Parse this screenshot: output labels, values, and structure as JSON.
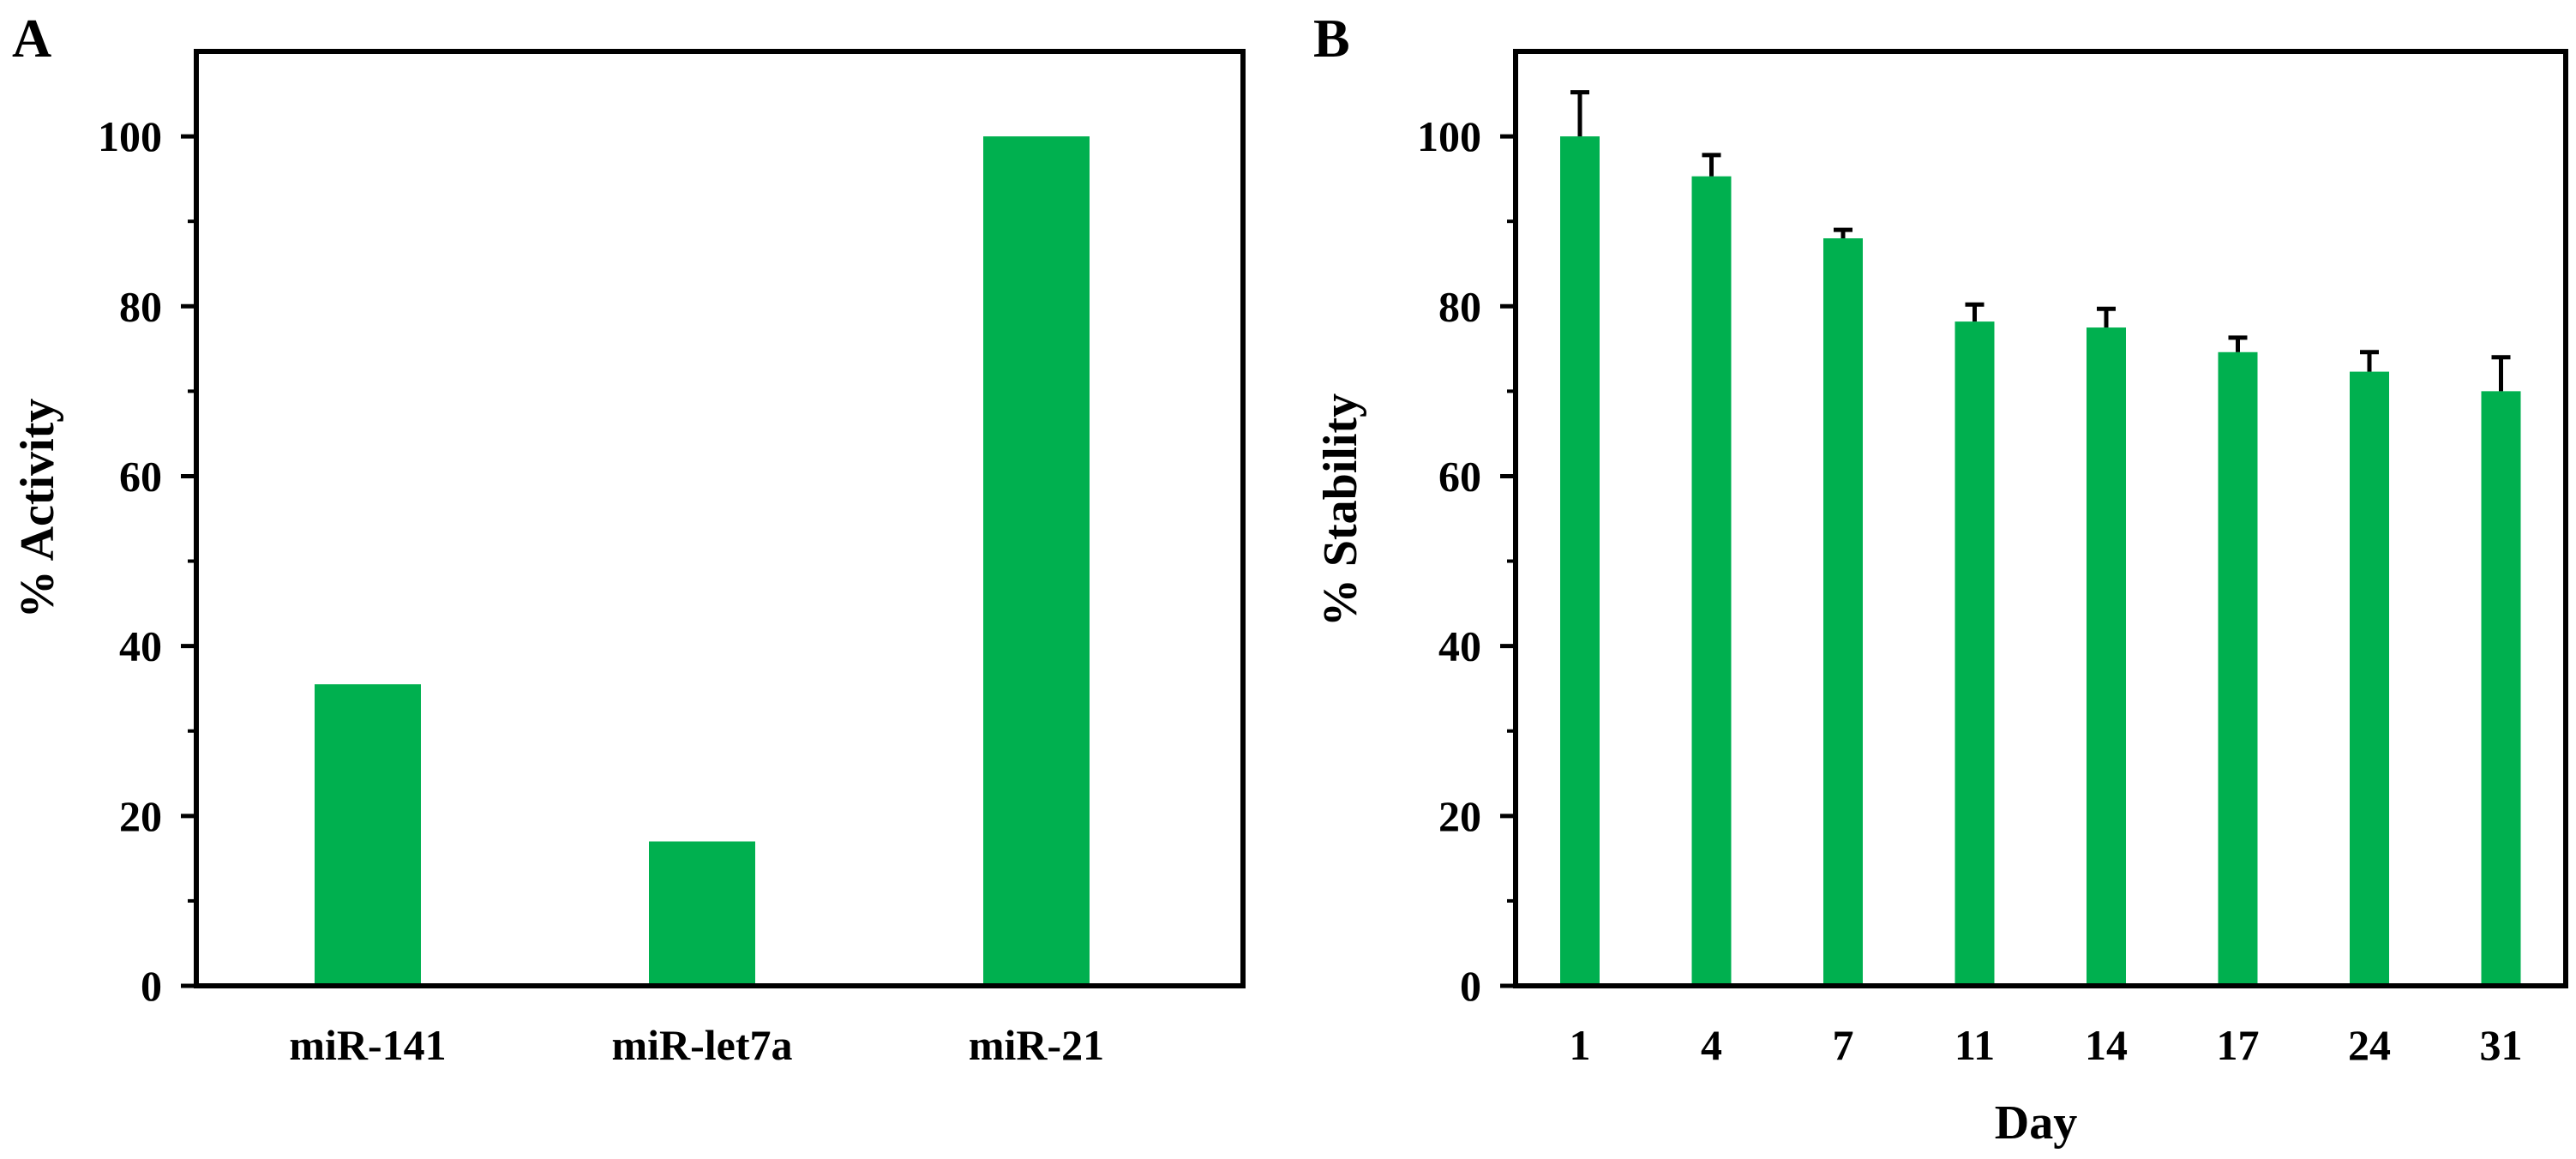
{
  "colors": {
    "bar": "#00b04f",
    "axis": "#000000",
    "error": "#000000"
  },
  "chart_data": [
    {
      "panel": "A",
      "type": "bar",
      "title": "",
      "xlabel": "",
      "ylabel": "% Activity",
      "ylim": [
        0,
        110
      ],
      "yticks": [
        0,
        20,
        40,
        60,
        80,
        100
      ],
      "categories": [
        "miR-141",
        "miR-let7a",
        "miR-21"
      ],
      "values": [
        35.5,
        17,
        100
      ],
      "errors": null,
      "grid": false,
      "legend": "none"
    },
    {
      "panel": "B",
      "type": "bar",
      "title": "",
      "xlabel": "Day",
      "ylabel": "% Stability",
      "ylim": [
        0,
        110
      ],
      "yticks": [
        0,
        20,
        40,
        60,
        80,
        100
      ],
      "categories": [
        "1",
        "4",
        "7",
        "11",
        "14",
        "17",
        "24",
        "31"
      ],
      "values": [
        100,
        95.3,
        88,
        78.2,
        77.5,
        74.6,
        72.3,
        70
      ],
      "errors": [
        5.2,
        2.5,
        1.0,
        2.0,
        2.2,
        1.7,
        2.3,
        4.0
      ],
      "grid": false,
      "legend": "none"
    }
  ]
}
